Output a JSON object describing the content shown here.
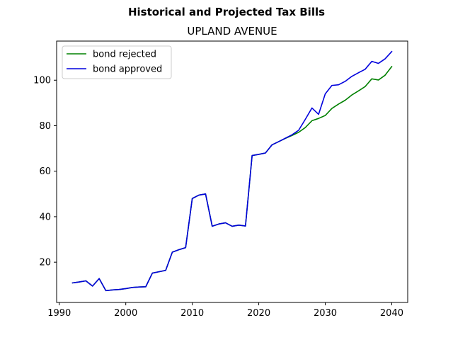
{
  "figure": {
    "suptitle": "Historical and Projected Tax Bills",
    "title": "UPLAND AVENUE"
  },
  "chart_data": {
    "type": "line",
    "xlim": [
      1989.6,
      2042.4
    ],
    "ylim": [
      2.3,
      117.2
    ],
    "xticks": [
      1990,
      2000,
      2010,
      2020,
      2030,
      2040
    ],
    "yticks": [
      20,
      40,
      60,
      80,
      100
    ],
    "grid": false,
    "legend_position": "top-left",
    "series": [
      {
        "name": "bond rejected",
        "color": "#008000",
        "x": [
          1992,
          1993,
          1994,
          1995,
          1996,
          1997,
          1998,
          1999,
          2000,
          2001,
          2002,
          2003,
          2004,
          2005,
          2006,
          2007,
          2008,
          2009,
          2010,
          2011,
          2012,
          2013,
          2014,
          2015,
          2016,
          2017,
          2018,
          2019,
          2020,
          2021,
          2022,
          2023,
          2024,
          2025,
          2026,
          2027,
          2028,
          2029,
          2030,
          2031,
          2032,
          2033,
          2034,
          2035,
          2036,
          2037,
          2038,
          2039,
          2040
        ],
        "y": [
          10.9,
          11.3,
          11.8,
          9.5,
          12.8,
          7.5,
          7.8,
          8.0,
          8.4,
          8.9,
          9.1,
          9.2,
          15.2,
          15.8,
          16.4,
          24.4,
          25.5,
          26.4,
          48.0,
          49.5,
          50.0,
          35.8,
          36.8,
          37.3,
          35.8,
          36.3,
          35.9,
          66.9,
          67.4,
          68.0,
          71.6,
          73.0,
          74.4,
          75.7,
          77.1,
          79.2,
          82.2,
          83.2,
          84.5,
          87.6,
          89.5,
          91.2,
          93.5,
          95.3,
          97.2,
          100.6,
          100.1,
          102.2,
          106.0
        ]
      },
      {
        "name": "bond approved",
        "color": "#0000dd",
        "x": [
          1992,
          1993,
          1994,
          1995,
          1996,
          1997,
          1998,
          1999,
          2000,
          2001,
          2002,
          2003,
          2004,
          2005,
          2006,
          2007,
          2008,
          2009,
          2010,
          2011,
          2012,
          2013,
          2014,
          2015,
          2016,
          2017,
          2018,
          2019,
          2020,
          2021,
          2022,
          2023,
          2024,
          2025,
          2026,
          2027,
          2028,
          2029,
          2030,
          2031,
          2032,
          2033,
          2034,
          2035,
          2036,
          2037,
          2038,
          2039,
          2040
        ],
        "y": [
          10.9,
          11.3,
          11.8,
          9.5,
          12.8,
          7.5,
          7.8,
          8.0,
          8.4,
          8.9,
          9.1,
          9.2,
          15.2,
          15.8,
          16.4,
          24.4,
          25.5,
          26.4,
          48.0,
          49.5,
          50.0,
          35.8,
          36.8,
          37.3,
          35.8,
          36.3,
          35.9,
          66.9,
          67.4,
          68.0,
          71.6,
          73.0,
          74.5,
          76.0,
          78.0,
          82.8,
          87.8,
          85.0,
          94.0,
          97.7,
          98.0,
          99.5,
          101.7,
          103.3,
          104.8,
          108.3,
          107.4,
          109.4,
          112.6
        ]
      }
    ]
  }
}
